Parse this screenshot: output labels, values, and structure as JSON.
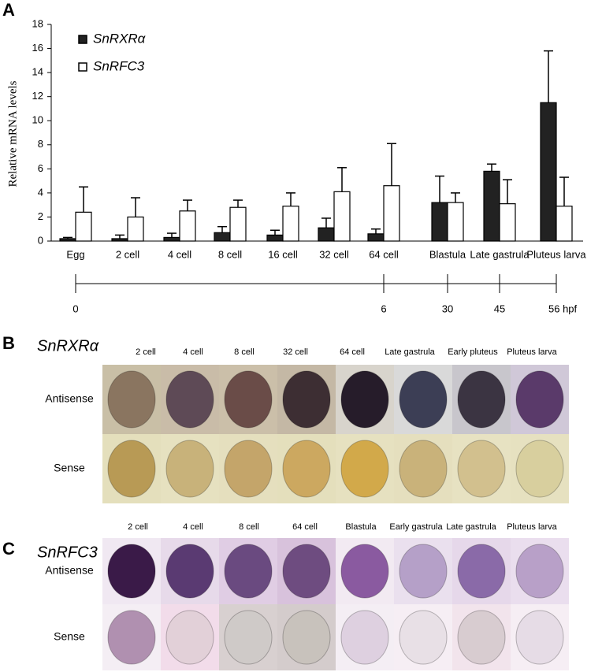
{
  "panel_a": {
    "label": "A"
  },
  "chart_data": {
    "type": "bar",
    "y_label": "Relative mRNA levels",
    "categories": [
      "Egg",
      "2 cell",
      "4 cell",
      "8 cell",
      "16 cell",
      "32 cell",
      "64 cell",
      "Blastula",
      "Late gastrula",
      "Pluteus larva"
    ],
    "series": [
      {
        "name": "SnRXRα",
        "color": "#222222",
        "values": [
          0.2,
          0.2,
          0.3,
          0.7,
          0.5,
          1.1,
          0.6,
          3.2,
          5.8,
          11.5
        ],
        "errors": [
          0.1,
          0.3,
          0.35,
          0.5,
          0.4,
          0.8,
          0.4,
          2.2,
          0.6,
          4.3
        ]
      },
      {
        "name": "SnRFC3",
        "color": "#ffffff",
        "values": [
          2.4,
          2.0,
          2.5,
          2.8,
          2.9,
          4.1,
          4.6,
          3.2,
          3.1,
          2.9
        ],
        "errors": [
          2.1,
          1.6,
          0.9,
          0.6,
          1.1,
          2.0,
          3.5,
          0.8,
          2.0,
          2.4
        ]
      }
    ],
    "ylim": [
      0,
      18
    ],
    "yticks": [
      0,
      2,
      4,
      6,
      8,
      10,
      12,
      14,
      16,
      18
    ]
  },
  "timeline": {
    "labels": [
      "0",
      "6",
      "30",
      "45",
      "56 hpf"
    ]
  },
  "panel_b": {
    "label": "B",
    "title": "SnRXRα",
    "columns": [
      "2 cell",
      "4 cell",
      "8 cell",
      "32 cell",
      "64 cell",
      "Late gastrula",
      "Early pluteus",
      "Pluteus larva"
    ],
    "rows": [
      "Antisense",
      "Sense"
    ]
  },
  "panel_c": {
    "label": "C",
    "title": "SnRFC3",
    "columns": [
      "2 cell",
      "4 cell",
      "8 cell",
      "64 cell",
      "Blastula",
      "Early gastrula",
      "Late gastrula",
      "Pluteus larva"
    ],
    "rows": [
      "Antisense",
      "Sense"
    ]
  }
}
